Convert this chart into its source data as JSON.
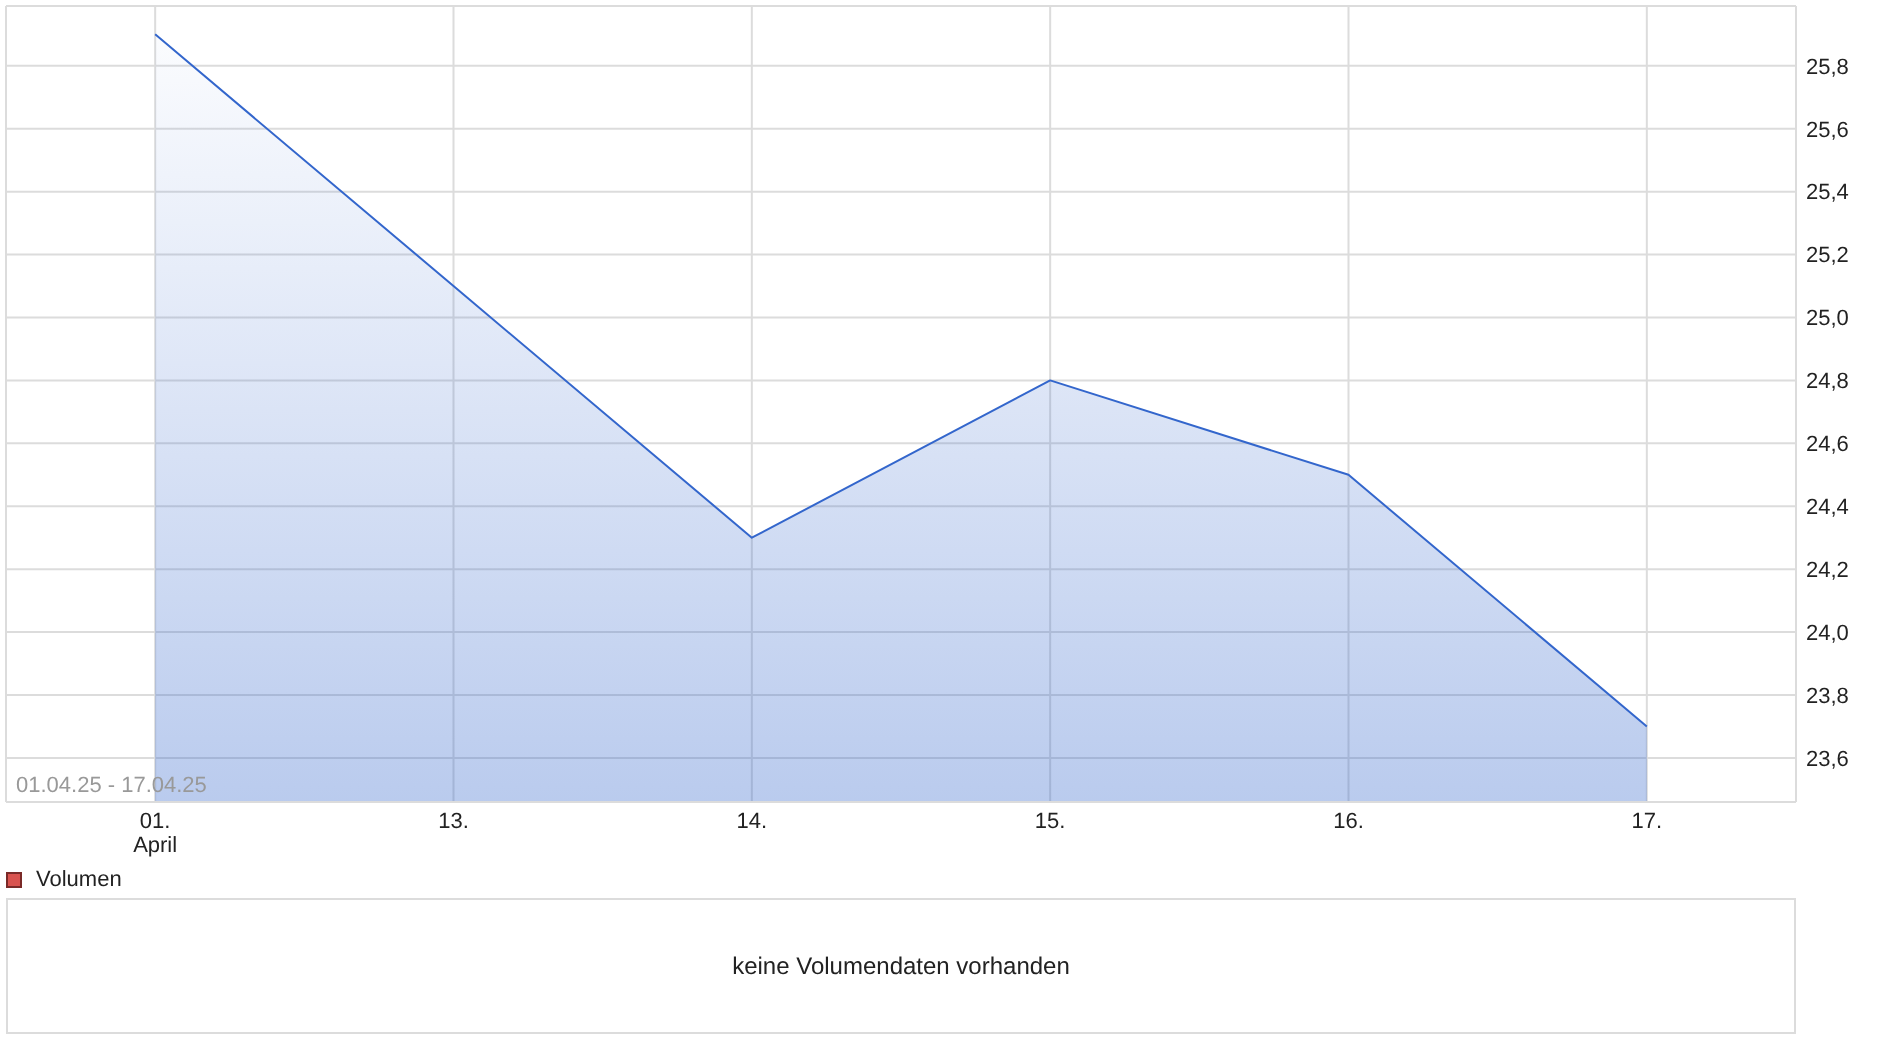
{
  "chart_data": [
    {
      "type": "area",
      "categories": [
        "01.\nApril",
        "13.",
        "14.",
        "15.",
        "16.",
        "17."
      ],
      "series": [
        {
          "color": "#3366cc",
          "values": [
            25.9,
            25.1,
            24.3,
            24.8,
            24.5,
            23.7
          ]
        }
      ],
      "ylim": [
        23.46,
        25.99
      ],
      "yticks": [
        {
          "value": 23.6,
          "label": "23,6"
        },
        {
          "value": 23.8,
          "label": "23,8"
        },
        {
          "value": 24.0,
          "label": "24,0"
        },
        {
          "value": 24.2,
          "label": "24,2"
        },
        {
          "value": 24.4,
          "label": "24,4"
        },
        {
          "value": 24.6,
          "label": "24,6"
        },
        {
          "value": 24.8,
          "label": "24,8"
        },
        {
          "value": 25.0,
          "label": "25,0"
        },
        {
          "value": 25.2,
          "label": "25,2"
        },
        {
          "value": 25.4,
          "label": "25,4"
        },
        {
          "value": 25.6,
          "label": "25,6"
        },
        {
          "value": 25.8,
          "label": "25,8"
        }
      ],
      "grid": true,
      "annotations": [
        "01.04.25 - 17.04.25"
      ]
    },
    {
      "type": "other",
      "series": [
        {
          "name": "Volumen",
          "color": "#d9534f"
        }
      ],
      "legend": "top left",
      "annotations": [
        "keine Volumendaten vorhanden"
      ]
    }
  ]
}
